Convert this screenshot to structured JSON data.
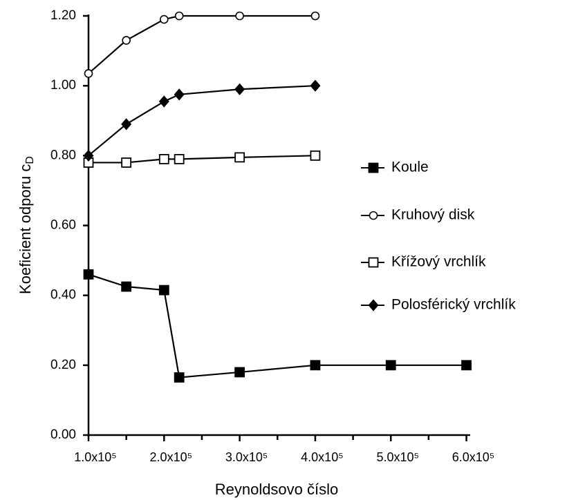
{
  "chart_data": {
    "type": "line",
    "x_label": "Reynoldsovo číslo",
    "y_label": "Koeficient odporu c",
    "y_label_sub": "D",
    "xlim": [
      100000,
      605000
    ],
    "ylim": [
      0,
      1.2
    ],
    "xticks": [
      {
        "value": 100000,
        "label": "1.0x10⁵"
      },
      {
        "value": 200000,
        "label": "2.0x10⁵"
      },
      {
        "value": 300000,
        "label": "3.0x10⁵"
      },
      {
        "value": 400000,
        "label": "4.0x10⁵"
      },
      {
        "value": 500000,
        "label": "5.0x10⁵"
      },
      {
        "value": 600000,
        "label": "6.0x10⁵"
      }
    ],
    "xminorticks": [
      150000,
      250000,
      350000,
      450000,
      550000
    ],
    "yticks": [
      {
        "value": 0,
        "label": "0.00"
      },
      {
        "value": 0.2,
        "label": "0.20"
      },
      {
        "value": 0.4,
        "label": "0.40"
      },
      {
        "value": 0.6,
        "label": "0.60"
      },
      {
        "value": 0.8,
        "label": "0.80"
      },
      {
        "value": 1,
        "label": "1.00"
      },
      {
        "value": 1.2,
        "label": "1.20"
      }
    ],
    "legend": "right",
    "series": [
      {
        "name": "Koule",
        "color": "#000000",
        "marker": "square-filled",
        "x": [
          100000,
          150000,
          200000,
          220000,
          300000,
          400000,
          500000,
          600000
        ],
        "values": [
          0.46,
          0.425,
          0.415,
          0.165,
          0.18,
          0.2,
          0.2,
          0.2
        ]
      },
      {
        "name": "Kruhový disk",
        "color": "#000000",
        "marker": "circle-open",
        "x": [
          100000,
          150000,
          200000,
          220000,
          300000,
          400000
        ],
        "values": [
          1.035,
          1.13,
          1.19,
          1.2,
          1.2,
          1.2
        ]
      },
      {
        "name": "Křížový vrchlík",
        "color": "#000000",
        "marker": "square-open",
        "x": [
          100000,
          150000,
          200000,
          220000,
          300000,
          400000
        ],
        "values": [
          0.78,
          0.78,
          0.79,
          0.79,
          0.795,
          0.8
        ]
      },
      {
        "name": "Polosférický vrchlík",
        "color": "#000000",
        "marker": "diamond-filled",
        "x": [
          100000,
          150000,
          200000,
          220000,
          300000,
          400000
        ],
        "values": [
          0.8,
          0.89,
          0.955,
          0.975,
          0.99,
          1.0
        ]
      }
    ]
  }
}
